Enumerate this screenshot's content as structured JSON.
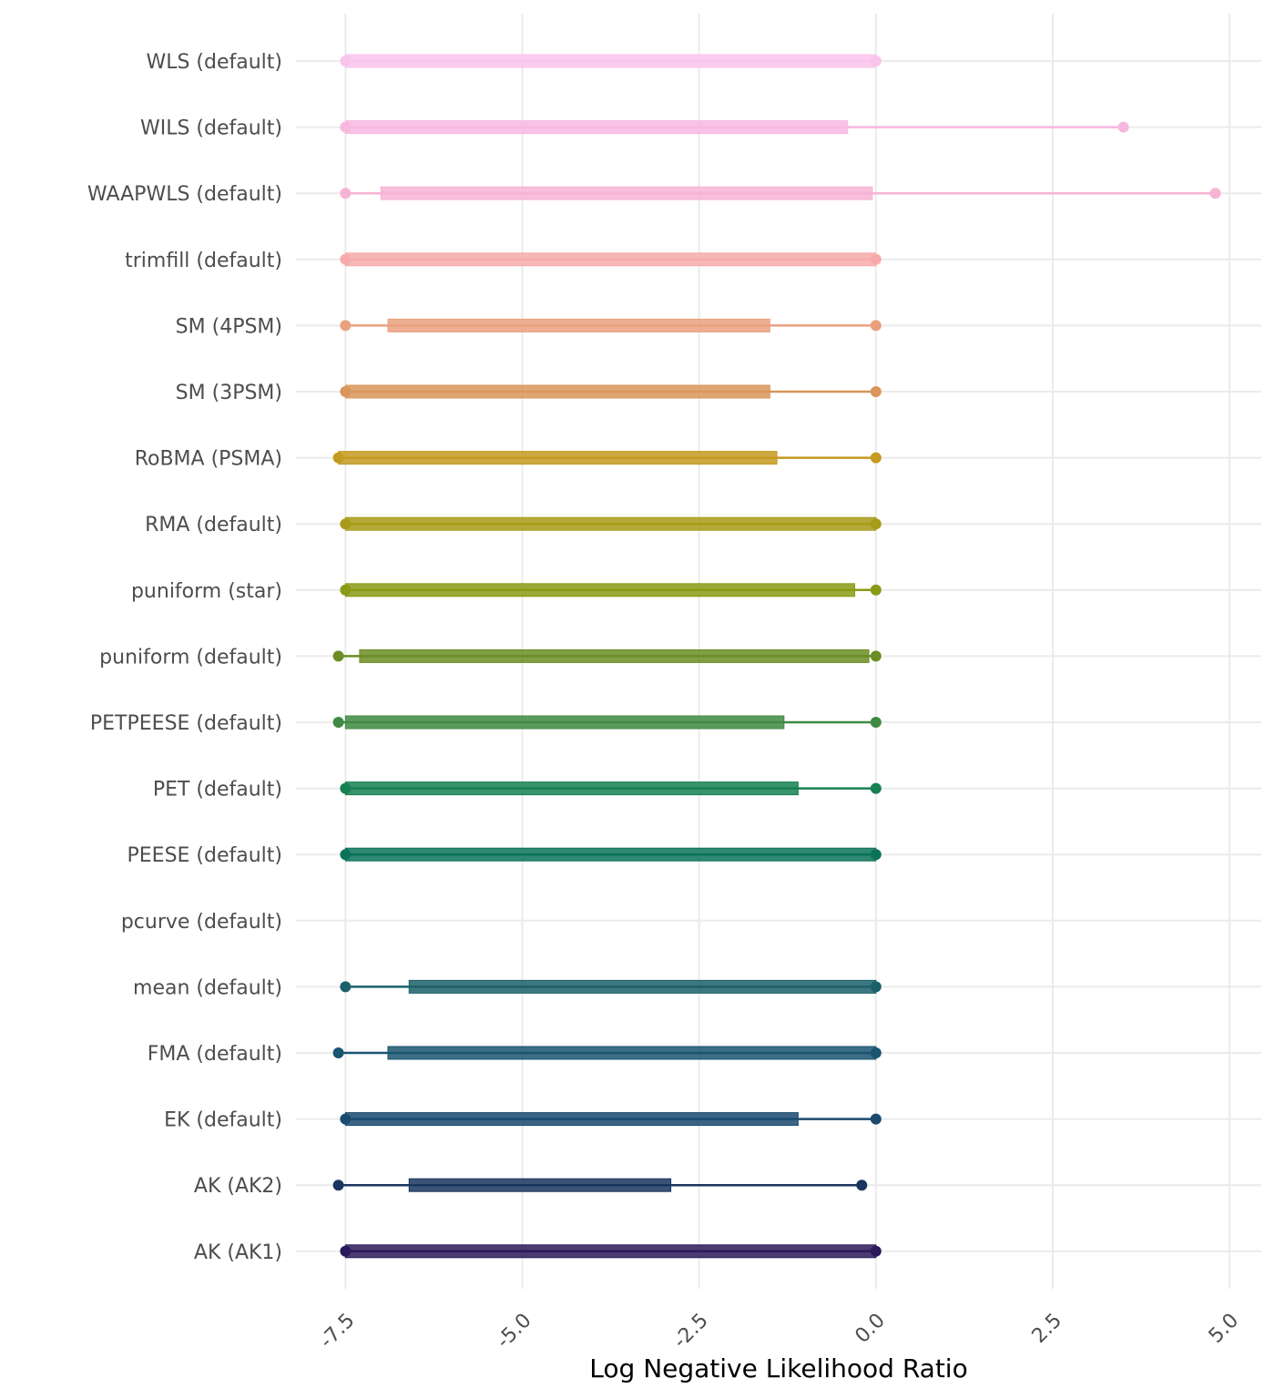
{
  "chart_data": {
    "type": "box",
    "orientation": "horizontal",
    "x_label": "Log Negative Likelihood Ratio",
    "categories": [
      "WLS (default)",
      "WILS (default)",
      "WAAPWLS (default)",
      "trimfill (default)",
      "SM (4PSM)",
      "SM (3PSM)",
      "RoBMA (PSMA)",
      "RMA (default)",
      "puniform (star)",
      "puniform (default)",
      "PETPEESE (default)",
      "PET (default)",
      "PEESE (default)",
      "pcurve (default)",
      "mean (default)",
      "FMA (default)",
      "EK (default)",
      "AK (AK2)",
      "AK (AK1)"
    ],
    "colors": [
      "#f9c4ec",
      "#f7b8e0",
      "#f7b3d4",
      "#f7aaaa",
      "#eaa07f",
      "#d9955a",
      "#c49a20",
      "#a89b18",
      "#8a9a14",
      "#6b8d25",
      "#3f8a42",
      "#168050",
      "#0b7358",
      "#137068",
      "#1a6068",
      "#1a5570",
      "#1a4a70",
      "#1a3560",
      "#2a1a5a"
    ],
    "boxes": [
      {
        "min": -7.5,
        "q1": -7.5,
        "q3": 0,
        "max": 0
      },
      {
        "min": -7.5,
        "q1": -7.5,
        "q3": -0.4,
        "max": 3.5
      },
      {
        "min": -7.5,
        "q1": -7.0,
        "q3": -0.05,
        "max": 4.8
      },
      {
        "min": -7.5,
        "q1": -7.5,
        "q3": 0,
        "max": 0
      },
      {
        "min": -7.5,
        "q1": -6.9,
        "q3": -1.5,
        "max": 0
      },
      {
        "min": -7.5,
        "q1": -7.5,
        "q3": -1.5,
        "max": 0
      },
      {
        "min": -7.6,
        "q1": -7.6,
        "q3": -1.4,
        "max": 0
      },
      {
        "min": -7.5,
        "q1": -7.5,
        "q3": 0,
        "max": 0
      },
      {
        "min": -7.5,
        "q1": -7.5,
        "q3": -0.3,
        "max": 0
      },
      {
        "min": -7.6,
        "q1": -7.3,
        "q3": -0.1,
        "max": 0
      },
      {
        "min": -7.6,
        "q1": -7.5,
        "q3": -1.3,
        "max": 0
      },
      {
        "min": -7.5,
        "q1": -7.5,
        "q3": -1.1,
        "max": 0
      },
      {
        "min": -7.5,
        "q1": -7.5,
        "q3": 0,
        "max": 0
      },
      null,
      {
        "min": -7.5,
        "q1": -6.6,
        "q3": 0,
        "max": 0
      },
      {
        "min": -7.6,
        "q1": -6.9,
        "q3": 0,
        "max": 0
      },
      {
        "min": -7.5,
        "q1": -7.5,
        "q3": -1.1,
        "max": 0
      },
      {
        "min": -7.6,
        "q1": -6.6,
        "q3": -2.9,
        "max": -0.2
      },
      {
        "min": -7.5,
        "q1": -7.5,
        "q3": 0,
        "max": 0
      }
    ],
    "xlim": [
      -8.2,
      5.45
    ],
    "xticks": [
      -7.5,
      {
        "value": -5,
        "label": "-5.0"
      },
      -2.5,
      {
        "value": 0,
        "label": "0.0"
      },
      2.5,
      {
        "value": 5,
        "label": "5.0"
      }
    ],
    "grid": true
  }
}
